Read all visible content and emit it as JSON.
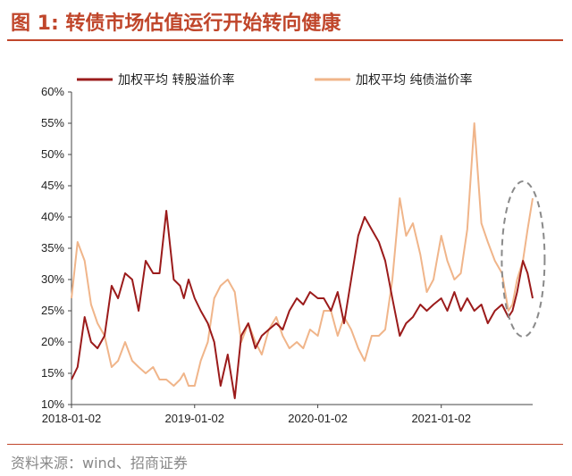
{
  "figure": {
    "title": "图 1:  转债市场估值运行开始转向健康",
    "source": "资料来源：wind、招商证券"
  },
  "colors": {
    "title": "#c0462b",
    "series1": "#9b1b1b",
    "series2": "#f0b58a",
    "highlight": "#8a8a8a"
  },
  "chart_data": {
    "type": "line",
    "title": "",
    "xlabel": "",
    "ylabel": "",
    "xlim": [
      "2018-01-02",
      "2021-09-30"
    ],
    "ylim": [
      10,
      60
    ],
    "x_tick_labels": [
      "2018-01-02",
      "2019-01-02",
      "2020-01-02",
      "2021-01-02"
    ],
    "y_tick_labels": [
      "10%",
      "15%",
      "20%",
      "25%",
      "30%",
      "35%",
      "40%",
      "45%",
      "50%",
      "55%",
      "60%"
    ],
    "legend_position": "top",
    "annotation": "dashed ellipse highlighting the most recent period",
    "series": [
      {
        "name": "加权平均 转股溢价率",
        "x": [
          "2018-01-02",
          "2018-01-20",
          "2018-02-10",
          "2018-03-01",
          "2018-03-20",
          "2018-04-10",
          "2018-05-01",
          "2018-05-20",
          "2018-06-10",
          "2018-07-01",
          "2018-07-20",
          "2018-08-10",
          "2018-09-01",
          "2018-09-20",
          "2018-10-10",
          "2018-11-01",
          "2018-11-20",
          "2018-12-01",
          "2018-12-15",
          "2019-01-02",
          "2019-01-20",
          "2019-02-10",
          "2019-03-01",
          "2019-03-20",
          "2019-04-10",
          "2019-05-01",
          "2019-05-20",
          "2019-06-10",
          "2019-07-01",
          "2019-07-20",
          "2019-08-10",
          "2019-09-01",
          "2019-09-20",
          "2019-10-10",
          "2019-11-01",
          "2019-11-20",
          "2019-12-10",
          "2020-01-02",
          "2020-01-20",
          "2020-02-10",
          "2020-03-01",
          "2020-03-20",
          "2020-04-10",
          "2020-05-01",
          "2020-05-20",
          "2020-06-10",
          "2020-07-01",
          "2020-07-20",
          "2020-08-10",
          "2020-09-01",
          "2020-09-20",
          "2020-10-10",
          "2020-11-01",
          "2020-11-20",
          "2020-12-10",
          "2021-01-02",
          "2021-01-20",
          "2021-02-10",
          "2021-03-01",
          "2021-03-20",
          "2021-04-10",
          "2021-05-01",
          "2021-05-20",
          "2021-06-10",
          "2021-07-01",
          "2021-07-20",
          "2021-08-01",
          "2021-08-15",
          "2021-09-01",
          "2021-09-15",
          "2021-09-30"
        ],
        "y": [
          14,
          16,
          24,
          20,
          19,
          21,
          29,
          27,
          31,
          30,
          25,
          33,
          31,
          31,
          41,
          30,
          29,
          27,
          30,
          27,
          25,
          23,
          20,
          13,
          18,
          11,
          21,
          23,
          19,
          21,
          22,
          23,
          22,
          25,
          27,
          26,
          28,
          27,
          27,
          25,
          28,
          23,
          30,
          37,
          40,
          38,
          36,
          33,
          27,
          21,
          23,
          24,
          26,
          25,
          26,
          27,
          25,
          28,
          25,
          27,
          25,
          26,
          23,
          25,
          26,
          24,
          25,
          28,
          33,
          31,
          27
        ]
      },
      {
        "name": "加权平均 纯债溢价率",
        "x": [
          "2018-01-02",
          "2018-01-20",
          "2018-02-10",
          "2018-03-01",
          "2018-03-20",
          "2018-04-10",
          "2018-05-01",
          "2018-05-20",
          "2018-06-10",
          "2018-07-01",
          "2018-07-20",
          "2018-08-10",
          "2018-09-01",
          "2018-09-20",
          "2018-10-10",
          "2018-11-01",
          "2018-11-20",
          "2018-12-01",
          "2018-12-15",
          "2019-01-02",
          "2019-01-20",
          "2019-02-10",
          "2019-03-01",
          "2019-03-20",
          "2019-04-10",
          "2019-05-01",
          "2019-05-20",
          "2019-06-10",
          "2019-07-01",
          "2019-07-20",
          "2019-08-10",
          "2019-09-01",
          "2019-09-20",
          "2019-10-10",
          "2019-11-01",
          "2019-11-20",
          "2019-12-10",
          "2020-01-02",
          "2020-01-20",
          "2020-02-10",
          "2020-03-01",
          "2020-03-20",
          "2020-04-10",
          "2020-05-01",
          "2020-05-20",
          "2020-06-10",
          "2020-07-01",
          "2020-07-20",
          "2020-08-10",
          "2020-09-01",
          "2020-09-20",
          "2020-10-10",
          "2020-11-01",
          "2020-11-20",
          "2020-12-10",
          "2021-01-02",
          "2021-01-20",
          "2021-02-10",
          "2021-03-01",
          "2021-03-20",
          "2021-04-10",
          "2021-05-01",
          "2021-05-20",
          "2021-06-10",
          "2021-07-01",
          "2021-07-20",
          "2021-08-01",
          "2021-08-15",
          "2021-09-01",
          "2021-09-15",
          "2021-09-30"
        ],
        "y": [
          27,
          36,
          33,
          26,
          23,
          21,
          16,
          17,
          20,
          17,
          16,
          15,
          16,
          14,
          14,
          13,
          14,
          15,
          13,
          13,
          17,
          20,
          27,
          29,
          30,
          28,
          20,
          23,
          20,
          18,
          22,
          24,
          21,
          19,
          20,
          19,
          22,
          21,
          25,
          25,
          21,
          24,
          22,
          19,
          17,
          21,
          21,
          22,
          30,
          43,
          37,
          39,
          34,
          28,
          30,
          37,
          33,
          30,
          31,
          38,
          55,
          39,
          36,
          33,
          31,
          25,
          26,
          30,
          33,
          38,
          43
        ]
      }
    ]
  }
}
